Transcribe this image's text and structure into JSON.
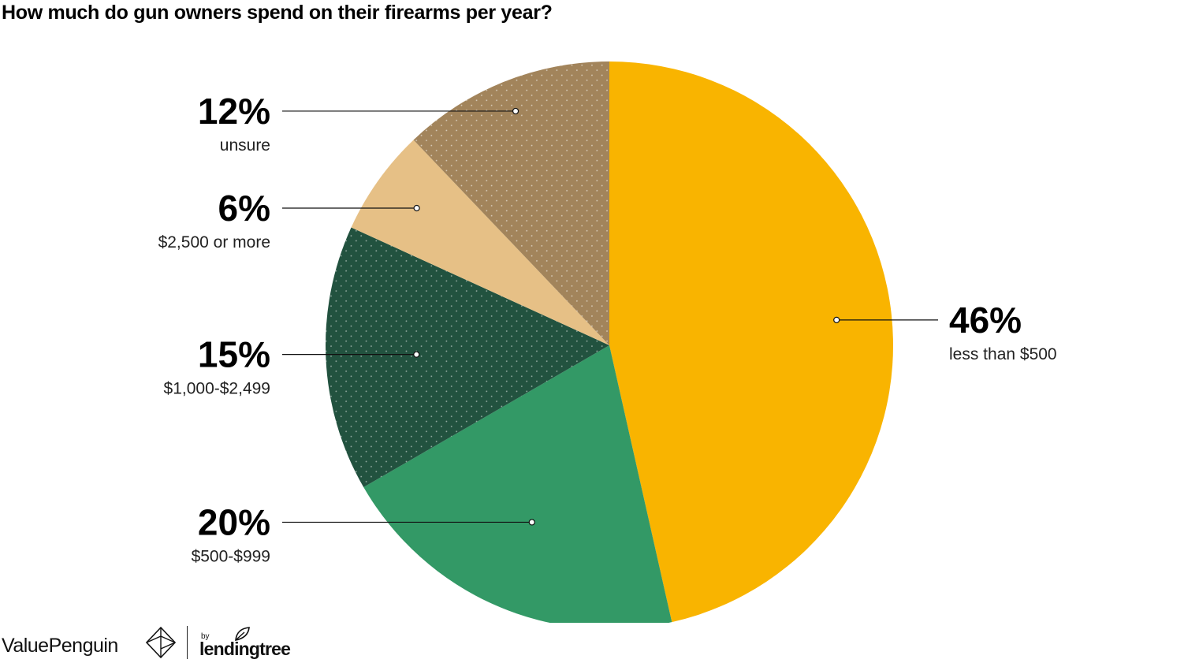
{
  "chart_data": {
    "type": "pie",
    "title": "How much do gun owners spend on their firearms per year?",
    "slices": [
      {
        "label": "less than $500",
        "value": 46,
        "value_label": "46%",
        "color": "#F9B400",
        "pattern": "none"
      },
      {
        "label": "$500-$999",
        "value": 20,
        "value_label": "20%",
        "color": "#339966",
        "pattern": "none"
      },
      {
        "label": "$1,000-$2,499",
        "value": 15,
        "value_label": "15%",
        "color": "#22523F",
        "pattern": "dotted-diagonal"
      },
      {
        "label": "$2,500 or more",
        "value": 6,
        "value_label": "6%",
        "color": "#E6C086",
        "pattern": "none"
      },
      {
        "label": "unsure",
        "value": 12,
        "value_label": "12%",
        "color": "#A2845B",
        "pattern": "dotted-diagonal"
      }
    ],
    "start_angle": "12 o'clock",
    "direction": "clockwise",
    "legend": "none"
  },
  "footer": {
    "brand_primary": "ValuePenguin",
    "brand_by": "by",
    "brand_secondary": "lendingtree"
  },
  "icons": {
    "brand_logo": "valuepenguin-logo-icon",
    "leaf": "leaf-icon"
  }
}
